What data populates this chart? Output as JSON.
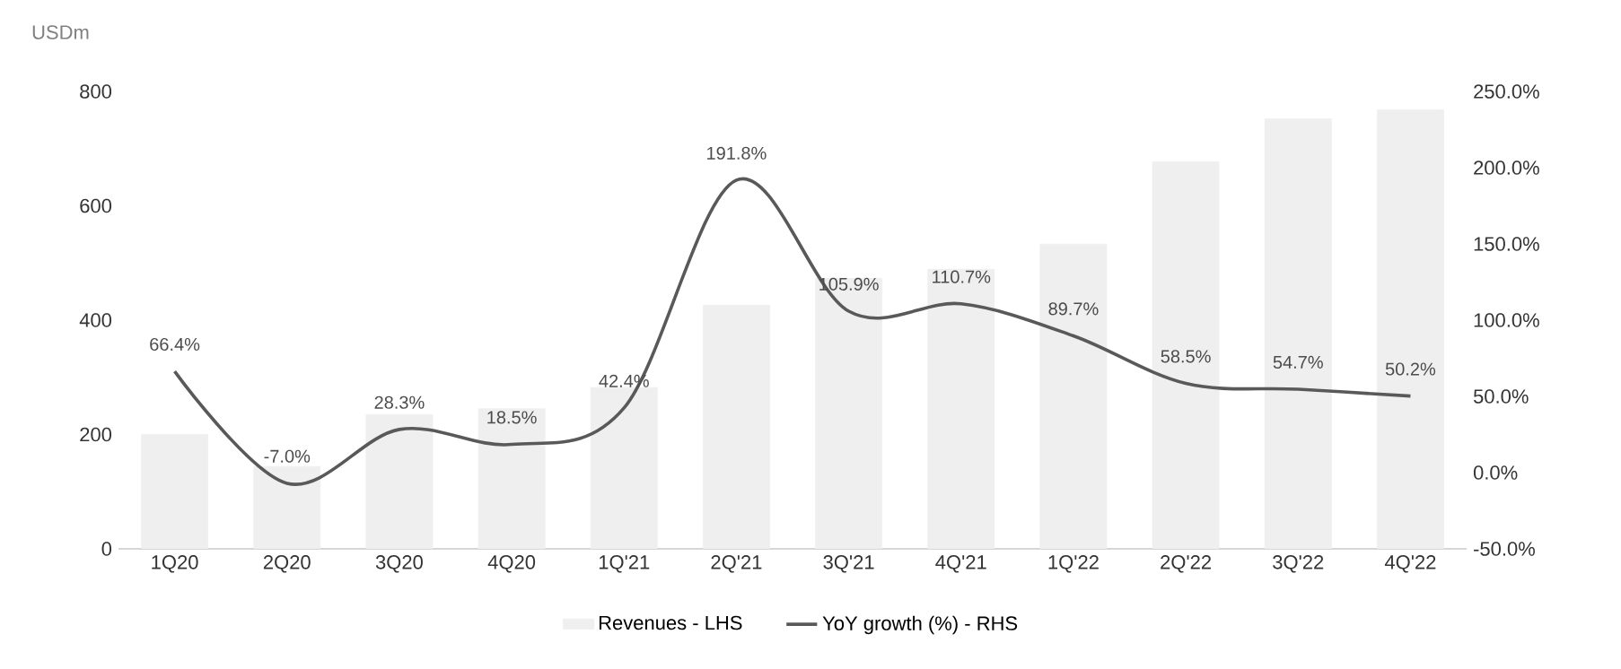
{
  "chart_data": {
    "type": "bar",
    "ylabel": "USDm",
    "categories": [
      "1Q20",
      "2Q20",
      "3Q20",
      "4Q20",
      "1Q'21",
      "2Q'21",
      "3Q'21",
      "4Q'21",
      "1Q'22",
      "2Q'22",
      "3Q'22",
      "4Q'22"
    ],
    "series": [
      {
        "name": "Revenues - LHS",
        "color": "#efefef",
        "values": [
          200,
          144,
          235,
          245,
          282,
          426,
          473,
          489,
          533,
          677,
          752,
          768
        ]
      },
      {
        "name": "YoY growth (%) - RHS",
        "type": "line",
        "axis": "y2",
        "color": "#595959",
        "values": [
          66.4,
          -7.0,
          28.3,
          18.5,
          42.4,
          191.8,
          105.9,
          110.7,
          89.7,
          58.5,
          54.7,
          50.2
        ],
        "value_labels": [
          "66.4%",
          "-7.0%",
          "28.3%",
          "18.5%",
          "42.4%",
          "191.8%",
          "105.9%",
          "110.7%",
          "89.7%",
          "58.5%",
          "54.7%",
          "50.2%"
        ]
      }
    ],
    "ylim": [
      0,
      800
    ],
    "yticks": [
      0,
      200,
      400,
      600,
      800
    ],
    "y2lim": [
      -50,
      250
    ],
    "y2ticks": [
      {
        "value": -50,
        "label": "-50.0%"
      },
      {
        "value": 0,
        "label": "0.0%"
      },
      {
        "value": 50,
        "label": "50.0%"
      },
      {
        "value": 100,
        "label": "100.0%"
      },
      {
        "value": 150,
        "label": "150.0%"
      },
      {
        "value": 200,
        "label": "200.0%"
      },
      {
        "value": 250,
        "label": "250.0%"
      }
    ],
    "legend": "bottom"
  }
}
